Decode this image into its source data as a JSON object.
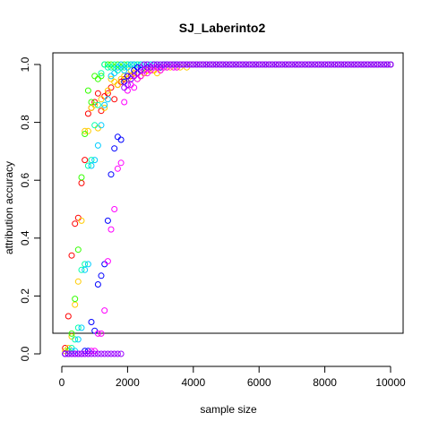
{
  "chart_data": {
    "type": "scatter",
    "title": "SJ_Laberinto2",
    "xlabel": "sample size",
    "ylabel": "attribution accuracy",
    "xlim": [
      0,
      10000
    ],
    "ylim": [
      0,
      1
    ],
    "x_ticks": [
      0,
      2000,
      4000,
      6000,
      8000,
      10000
    ],
    "y_ticks": [
      0.0,
      0.2,
      0.4,
      0.6,
      0.8,
      1.0
    ],
    "y_tick_labels": [
      "0.0",
      "0.2",
      "0.4",
      "0.6",
      "0.8",
      "1.0"
    ],
    "grid": false,
    "legend": "none",
    "marker": "open-circle",
    "x": [
      100,
      200,
      300,
      400,
      500,
      600,
      700,
      800,
      900,
      1000,
      1100,
      1200,
      1300,
      1400,
      1500,
      1600,
      1700,
      1800,
      1900,
      2000,
      2100,
      2200,
      2300,
      2400,
      2500,
      2600,
      2700,
      2800,
      2900,
      3000,
      3100,
      3200,
      3300,
      3400,
      3500,
      3600,
      3700,
      3800,
      3900,
      4000,
      4100,
      4200,
      4300,
      4400,
      4500,
      4600,
      4700,
      4800,
      4900,
      5000,
      5100,
      5200,
      5300,
      5400,
      5500,
      5600,
      5700,
      5800,
      5900,
      6000,
      6100,
      6200,
      6300,
      6400,
      6500,
      6600,
      6700,
      6800,
      6900,
      7000,
      7100,
      7200,
      7300,
      7400,
      7500,
      7600,
      7700,
      7800,
      7900,
      8000,
      8100,
      8200,
      8300,
      8400,
      8500,
      8600,
      8700,
      8800,
      8900,
      9000,
      9100,
      9200,
      9300,
      9400,
      9500,
      9600,
      9700,
      9800,
      9900,
      10000
    ],
    "series": [
      {
        "color": "#FF0000",
        "values": [
          0.02,
          0.13,
          0.34,
          0.45,
          0.47,
          0.59,
          0.67,
          0.83,
          0.85,
          0.87,
          0.9,
          0.84,
          0.89,
          0.9,
          0.92,
          0.88,
          0.93,
          0.94,
          0.95,
          0.96,
          0.96,
          0.97,
          0.97,
          0.96,
          0.97,
          0.98,
          0.98,
          0.98,
          0.99,
          0.99,
          1.0,
          1.0,
          1.0,
          1.0,
          1.0,
          1.0,
          1.0,
          1.0,
          1.0,
          1.0,
          1.0,
          1.0,
          1.0,
          1.0,
          1.0,
          1.0,
          1.0,
          1.0,
          1.0,
          1.0,
          1.0,
          1.0,
          1.0,
          1.0,
          1.0,
          1.0,
          1.0,
          1.0,
          1.0,
          1.0,
          1.0,
          1.0,
          1.0,
          1.0,
          1.0,
          1.0,
          1.0,
          1.0,
          1.0,
          1.0,
          1.0,
          1.0,
          1.0,
          1.0,
          1.0,
          1.0,
          1.0,
          1.0,
          1.0,
          1.0,
          1.0,
          1.0,
          1.0,
          1.0,
          1.0,
          1.0,
          1.0,
          1.0,
          1.0,
          1.0,
          1.0,
          1.0,
          1.0,
          1.0,
          1.0,
          1.0,
          1.0,
          1.0,
          1.0,
          1.0
        ]
      },
      {
        "color": "#FFCC00",
        "values": [
          0.01,
          0.02,
          0.06,
          0.17,
          0.25,
          0.46,
          0.77,
          0.77,
          0.85,
          0.86,
          0.78,
          0.88,
          0.85,
          0.91,
          0.95,
          0.94,
          0.93,
          0.95,
          0.96,
          0.95,
          0.98,
          0.97,
          0.95,
          0.96,
          0.97,
          0.98,
          0.99,
          0.98,
          0.97,
          0.98,
          0.99,
          0.99,
          0.99,
          1.0,
          0.99,
          0.99,
          1.0,
          0.99,
          1.0,
          1.0,
          1.0,
          1.0,
          1.0,
          1.0,
          1.0,
          1.0,
          1.0,
          1.0,
          1.0,
          1.0,
          1.0,
          1.0,
          1.0,
          1.0,
          1.0,
          1.0,
          1.0,
          1.0,
          1.0,
          1.0,
          1.0,
          1.0,
          1.0,
          1.0,
          1.0,
          1.0,
          1.0,
          1.0,
          1.0,
          1.0,
          1.0,
          1.0,
          1.0,
          1.0,
          1.0,
          1.0,
          1.0,
          1.0,
          1.0,
          1.0,
          1.0,
          1.0,
          1.0,
          1.0,
          1.0,
          1.0,
          1.0,
          1.0,
          1.0,
          1.0,
          1.0,
          1.0,
          1.0,
          1.0,
          1.0,
          1.0,
          1.0,
          1.0,
          1.0,
          1.0
        ]
      },
      {
        "color": "#33FF00",
        "values": [
          0.0,
          0.01,
          0.07,
          0.19,
          0.36,
          0.61,
          0.76,
          0.91,
          0.87,
          0.96,
          0.95,
          0.96,
          1.0,
          1.0,
          1.0,
          0.99,
          1.0,
          0.99,
          1.0,
          1.0,
          1.0,
          1.0,
          1.0,
          1.0,
          1.0,
          1.0,
          1.0,
          1.0,
          1.0,
          1.0,
          1.0,
          1.0,
          1.0,
          1.0,
          1.0,
          1.0,
          1.0,
          1.0,
          1.0,
          1.0,
          1.0,
          1.0,
          1.0,
          1.0,
          1.0,
          1.0,
          1.0,
          1.0,
          1.0,
          1.0,
          1.0,
          1.0,
          1.0,
          1.0,
          1.0,
          1.0,
          1.0,
          1.0,
          1.0,
          1.0,
          1.0,
          1.0,
          1.0,
          1.0,
          1.0,
          1.0,
          1.0,
          1.0,
          1.0,
          1.0,
          1.0,
          1.0,
          1.0,
          1.0,
          1.0,
          1.0,
          1.0,
          1.0,
          1.0,
          1.0,
          1.0,
          1.0,
          1.0,
          1.0,
          1.0,
          1.0,
          1.0,
          1.0,
          1.0,
          1.0,
          1.0,
          1.0,
          1.0,
          1.0,
          1.0,
          1.0,
          1.0,
          1.0,
          1.0,
          1.0
        ]
      },
      {
        "color": "#00FFAA",
        "values": [
          0.0,
          0.0,
          0.02,
          0.05,
          0.09,
          0.29,
          0.31,
          0.65,
          0.67,
          0.79,
          0.86,
          0.97,
          1.0,
          0.99,
          0.99,
          1.0,
          0.98,
          1.0,
          0.99,
          1.0,
          1.0,
          1.0,
          1.0,
          1.0,
          1.0,
          1.0,
          1.0,
          1.0,
          1.0,
          1.0,
          1.0,
          1.0,
          1.0,
          1.0,
          1.0,
          1.0,
          1.0,
          1.0,
          1.0,
          1.0,
          1.0,
          1.0,
          1.0,
          1.0,
          1.0,
          1.0,
          1.0,
          1.0,
          1.0,
          1.0,
          1.0,
          1.0,
          1.0,
          1.0,
          1.0,
          1.0,
          1.0,
          1.0,
          1.0,
          1.0,
          1.0,
          1.0,
          1.0,
          1.0,
          1.0,
          1.0,
          1.0,
          1.0,
          1.0,
          1.0,
          1.0,
          1.0,
          1.0,
          1.0,
          1.0,
          1.0,
          1.0,
          1.0,
          1.0,
          1.0,
          1.0,
          1.0,
          1.0,
          1.0,
          1.0,
          1.0,
          1.0,
          1.0,
          1.0,
          1.0,
          1.0,
          1.0,
          1.0,
          1.0,
          1.0,
          1.0,
          1.0,
          1.0,
          1.0,
          1.0
        ]
      },
      {
        "color": "#00CCFF",
        "values": [
          0.0,
          0.0,
          0.01,
          0.01,
          0.05,
          0.09,
          0.29,
          0.31,
          0.65,
          0.67,
          0.72,
          0.79,
          0.86,
          0.88,
          0.96,
          0.97,
          0.99,
          1.0,
          0.98,
          0.99,
          1.0,
          1.0,
          0.99,
          1.0,
          1.0,
          1.0,
          1.0,
          1.0,
          1.0,
          1.0,
          1.0,
          1.0,
          1.0,
          1.0,
          1.0,
          1.0,
          1.0,
          1.0,
          1.0,
          1.0,
          1.0,
          1.0,
          1.0,
          1.0,
          1.0,
          1.0,
          1.0,
          1.0,
          1.0,
          1.0,
          1.0,
          1.0,
          1.0,
          1.0,
          1.0,
          1.0,
          1.0,
          1.0,
          1.0,
          1.0,
          1.0,
          1.0,
          1.0,
          1.0,
          1.0,
          1.0,
          1.0,
          1.0,
          1.0,
          1.0,
          1.0,
          1.0,
          1.0,
          1.0,
          1.0,
          1.0,
          1.0,
          1.0,
          1.0,
          1.0,
          1.0,
          1.0,
          1.0,
          1.0,
          1.0,
          1.0,
          1.0,
          1.0,
          1.0,
          1.0,
          1.0,
          1.0,
          1.0,
          1.0,
          1.0,
          1.0,
          1.0,
          1.0,
          1.0,
          1.0
        ]
      },
      {
        "color": "#0000FF",
        "values": [
          0.0,
          0.0,
          0.0,
          0.0,
          0.0,
          0.0,
          0.01,
          0.01,
          0.11,
          0.08,
          0.24,
          0.27,
          0.31,
          0.46,
          0.62,
          0.71,
          0.75,
          0.74,
          0.94,
          0.96,
          0.95,
          0.98,
          0.99,
          0.98,
          0.98,
          0.99,
          0.99,
          1.0,
          0.99,
          0.99,
          1.0,
          1.0,
          1.0,
          1.0,
          1.0,
          1.0,
          1.0,
          1.0,
          1.0,
          1.0,
          1.0,
          1.0,
          1.0,
          1.0,
          1.0,
          1.0,
          1.0,
          1.0,
          1.0,
          1.0,
          1.0,
          1.0,
          1.0,
          1.0,
          1.0,
          1.0,
          1.0,
          1.0,
          1.0,
          1.0,
          1.0,
          1.0,
          1.0,
          1.0,
          1.0,
          1.0,
          1.0,
          1.0,
          1.0,
          1.0,
          1.0,
          1.0,
          1.0,
          1.0,
          1.0,
          1.0,
          1.0,
          1.0,
          1.0,
          1.0,
          1.0,
          1.0,
          1.0,
          1.0,
          1.0,
          1.0,
          1.0,
          1.0,
          1.0,
          1.0,
          1.0,
          1.0,
          1.0,
          1.0,
          1.0,
          1.0,
          1.0,
          1.0,
          1.0,
          1.0
        ]
      },
      {
        "color": "#FF00FF",
        "values": [
          0.0,
          0.0,
          0.0,
          0.0,
          0.0,
          0.0,
          0.0,
          0.0,
          0.01,
          0.01,
          0.07,
          0.07,
          0.15,
          0.32,
          0.43,
          0.5,
          0.64,
          0.66,
          0.87,
          0.91,
          0.93,
          0.92,
          0.95,
          0.96,
          0.98,
          0.97,
          0.98,
          0.99,
          0.99,
          0.98,
          0.99,
          0.99,
          1.0,
          0.99,
          0.99,
          1.0,
          1.0,
          1.0,
          1.0,
          1.0,
          1.0,
          1.0,
          1.0,
          1.0,
          1.0,
          1.0,
          1.0,
          1.0,
          1.0,
          1.0,
          1.0,
          1.0,
          1.0,
          1.0,
          1.0,
          1.0,
          1.0,
          1.0,
          1.0,
          1.0,
          1.0,
          1.0,
          1.0,
          1.0,
          1.0,
          1.0,
          1.0,
          1.0,
          1.0,
          1.0,
          1.0,
          1.0,
          1.0,
          1.0,
          1.0,
          1.0,
          1.0,
          1.0,
          1.0,
          1.0,
          1.0,
          1.0,
          1.0,
          1.0,
          1.0,
          1.0,
          1.0,
          1.0,
          1.0,
          1.0,
          1.0,
          1.0,
          1.0,
          1.0,
          1.0,
          1.0,
          1.0,
          1.0,
          1.0,
          1.0
        ]
      },
      {
        "color": "#9900FF",
        "values": [
          0.0,
          0.0,
          0.0,
          0.0,
          0.0,
          0.0,
          0.0,
          0.0,
          0.0,
          0.0,
          0.0,
          0.0,
          0.0,
          0.0,
          0.0,
          0.0,
          0.0,
          0.0,
          0.92,
          0.93,
          0.95,
          0.96,
          0.97,
          0.99,
          1.0,
          1.0,
          0.99,
          1.0,
          1.0,
          1.0,
          1.0,
          1.0,
          1.0,
          1.0,
          1.0,
          1.0,
          1.0,
          1.0,
          1.0,
          1.0,
          1.0,
          1.0,
          1.0,
          1.0,
          1.0,
          1.0,
          1.0,
          1.0,
          1.0,
          1.0,
          1.0,
          1.0,
          1.0,
          1.0,
          1.0,
          1.0,
          1.0,
          1.0,
          1.0,
          1.0,
          1.0,
          1.0,
          1.0,
          1.0,
          1.0,
          1.0,
          1.0,
          1.0,
          1.0,
          1.0,
          1.0,
          1.0,
          1.0,
          1.0,
          1.0,
          1.0,
          1.0,
          1.0,
          1.0,
          1.0,
          1.0,
          1.0,
          1.0,
          1.0,
          1.0,
          1.0,
          1.0,
          1.0,
          1.0,
          1.0,
          1.0,
          1.0,
          1.0,
          1.0,
          1.0,
          1.0,
          1.0,
          1.0,
          1.0,
          1.0
        ]
      }
    ]
  }
}
